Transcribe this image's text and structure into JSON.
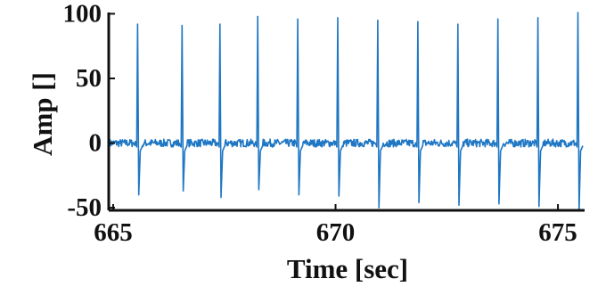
{
  "colors": {
    "signal": "#1f77c4",
    "axis": "#111111"
  },
  "chart_data": {
    "type": "line",
    "title": "",
    "xlabel": "Time [sec]",
    "ylabel": "Amp []",
    "xlim": [
      664.9,
      675.6
    ],
    "ylim": [
      -52,
      101
    ],
    "xticks": [
      665,
      670,
      675
    ],
    "yticks": [
      100,
      50,
      0,
      -50
    ],
    "xtick_labels": [
      "665",
      "670",
      "675"
    ],
    "ytick_labels": [
      "100",
      "50",
      "0",
      "-50"
    ],
    "grid": false,
    "legend": "none",
    "series": [
      {
        "beats": [
          {
            "t": 665.55,
            "peak": 92,
            "trough": -40
          },
          {
            "t": 666.55,
            "peak": 91,
            "trough": -37
          },
          {
            "t": 667.4,
            "peak": 92,
            "trough": -42
          },
          {
            "t": 668.25,
            "peak": 98,
            "trough": -36
          },
          {
            "t": 669.15,
            "peak": 96,
            "trough": -40
          },
          {
            "t": 670.05,
            "peak": 97,
            "trough": -41
          },
          {
            "t": 670.95,
            "peak": 95,
            "trough": -50
          },
          {
            "t": 671.85,
            "peak": 94,
            "trough": -46
          },
          {
            "t": 672.75,
            "peak": 92,
            "trough": -48
          },
          {
            "t": 673.65,
            "peak": 96,
            "trough": -47
          },
          {
            "t": 674.55,
            "peak": 97,
            "trough": -49
          },
          {
            "t": 675.45,
            "peak": 101,
            "trough": -52
          }
        ],
        "baseline": 0,
        "noise_amplitude": 3
      }
    ]
  }
}
